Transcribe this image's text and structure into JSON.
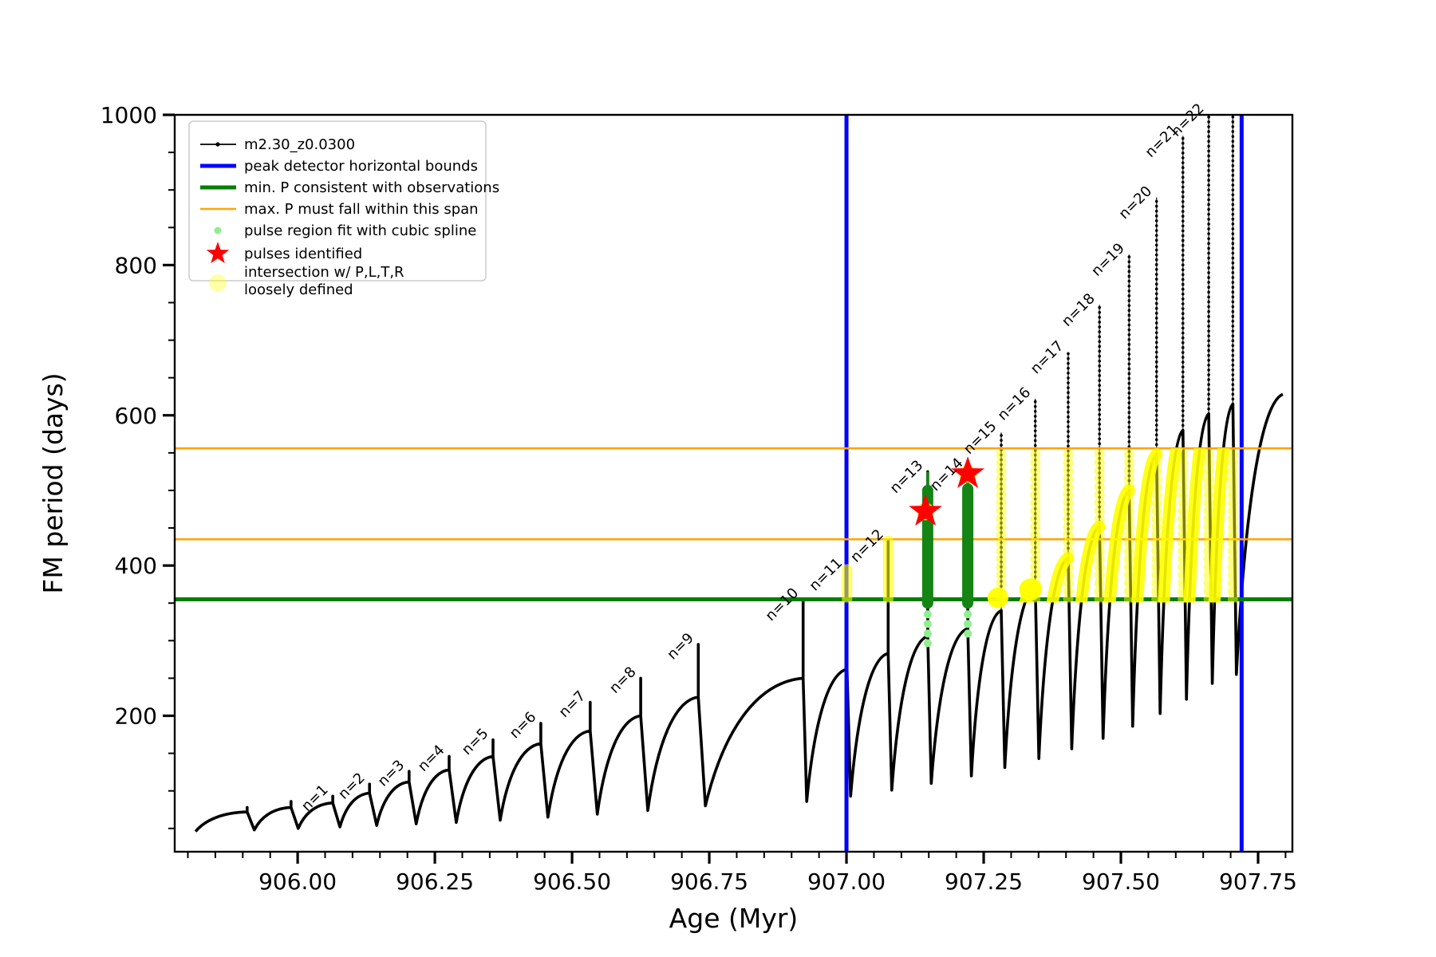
{
  "figure": {
    "kind": "matplotlib-style plot",
    "background": "#ffffff"
  },
  "legend": {
    "items": [
      {
        "type": "line-marker",
        "color": "#000000",
        "lw": 1.8,
        "label": "m2.30_z0.0300"
      },
      {
        "type": "line",
        "color": "#0000ff",
        "lw": 5,
        "label": "peak detector horizontal bounds"
      },
      {
        "type": "line",
        "color": "#007f00",
        "lw": 5,
        "label": "min. P consistent with observations"
      },
      {
        "type": "line",
        "color": "#ffa500",
        "lw": 2.5,
        "label": "max. P must fall within this span"
      },
      {
        "type": "dot",
        "color": "#90ee90",
        "r": 4.5,
        "opacity": 1,
        "label": "pulse region fit with cubic spline"
      },
      {
        "type": "star",
        "color": "#ff0000",
        "label": "pulses identified"
      },
      {
        "type": "dot",
        "color": "#ffff00",
        "r": 11,
        "opacity": 0.35,
        "label": [
          "intersection w/ P,L,T,R",
          "loosely defined"
        ]
      }
    ]
  },
  "chart_data": {
    "type": "line",
    "title": "",
    "xlabel": "Age (Myr)",
    "ylabel": "FM period (days)",
    "xlim": [
      905.776,
      907.8125
    ],
    "ylim": [
      19,
      1000
    ],
    "grid": false,
    "legend_position": "upper left",
    "x_major_ticks": [
      906.0,
      906.25,
      906.5,
      906.75,
      907.0,
      907.25,
      907.5,
      907.75
    ],
    "x_major_tick_labels": [
      "906.00",
      "906.25",
      "906.50",
      "906.75",
      "907.00",
      "907.25",
      "907.50",
      "907.75"
    ],
    "x_minor_step": 0.05,
    "y_major_ticks": [
      200,
      400,
      600,
      800,
      1000
    ],
    "y_major_tick_labels": [
      "200",
      "400",
      "600",
      "800",
      "1000"
    ],
    "y_minor_step": 50,
    "series_label": "m2.30_z0.0300",
    "colors": {
      "curve": "#000000",
      "peak_bounds": "#0000ff",
      "min_P": "#007f00",
      "max_P_span": "#ffa500",
      "spline_region": "#148414",
      "spline_dots": "#90ee90",
      "pulse_star": "#ff0000",
      "intersection": "#ffff00"
    },
    "peak_detector_bounds_x": [
      907.0,
      907.72
    ],
    "min_P_line_y": 355,
    "max_P_span_y": [
      435,
      556
    ],
    "pulses_identified": [
      {
        "age": 907.144,
        "period": 472
      },
      {
        "age": 907.221,
        "period": 522
      }
    ],
    "intersection_blobs": [
      {
        "age": 907.276,
        "period": 357,
        "r": 13
      },
      {
        "age": 907.335,
        "period": 368,
        "r": 14
      }
    ],
    "data_start": {
      "age": 905.814,
      "value": 46
    },
    "data_end": {
      "age": 907.795,
      "value": 628
    },
    "cycles": [
      {
        "label": null,
        "spike_age": 905.908,
        "base": 46,
        "shoulder": 72,
        "tip": 78,
        "yellow": false,
        "green": false
      },
      {
        "label": null,
        "spike_age": 905.988,
        "base": 48,
        "shoulder": 78,
        "tip": 86,
        "yellow": false,
        "green": false
      },
      {
        "label": "n=1",
        "spike_age": 906.064,
        "base": 50,
        "shoulder": 84,
        "tip": 93,
        "yellow": false,
        "green": false
      },
      {
        "label": "n=2",
        "spike_age": 906.131,
        "base": 52,
        "shoulder": 97,
        "tip": 109,
        "yellow": false,
        "green": false
      },
      {
        "label": "n=3",
        "spike_age": 906.203,
        "base": 54,
        "shoulder": 112,
        "tip": 126,
        "yellow": false,
        "green": false
      },
      {
        "label": "n=4",
        "spike_age": 906.276,
        "base": 56,
        "shoulder": 128,
        "tip": 146,
        "yellow": false,
        "green": false
      },
      {
        "label": "n=5",
        "spike_age": 906.356,
        "base": 58,
        "shoulder": 146,
        "tip": 168,
        "yellow": false,
        "green": false
      },
      {
        "label": "n=6",
        "spike_age": 906.443,
        "base": 61,
        "shoulder": 163,
        "tip": 190,
        "yellow": false,
        "green": false
      },
      {
        "label": "n=7",
        "spike_age": 906.533,
        "base": 65,
        "shoulder": 180,
        "tip": 218,
        "yellow": false,
        "green": false
      },
      {
        "label": "n=8",
        "spike_age": 906.625,
        "base": 69,
        "shoulder": 200,
        "tip": 250,
        "yellow": false,
        "green": false
      },
      {
        "label": "n=9",
        "spike_age": 906.73,
        "base": 74,
        "shoulder": 225,
        "tip": 295,
        "yellow": false,
        "green": false
      },
      {
        "label": "n=10",
        "spike_age": 906.921,
        "base": 80,
        "shoulder": 250,
        "tip": 355,
        "yellow": false,
        "green": false
      },
      {
        "label": "n=11",
        "spike_age": 907.001,
        "base": 86,
        "shoulder": 262,
        "tip": 395,
        "yellow": true,
        "green": false
      },
      {
        "label": "n=12",
        "spike_age": 907.076,
        "base": 93,
        "shoulder": 283,
        "tip": 433,
        "yellow": true,
        "green": false
      },
      {
        "label": "n=13",
        "spike_age": 907.148,
        "base": 101,
        "shoulder": 306,
        "tip": 525,
        "yellow": false,
        "green": true
      },
      {
        "label": "n=14",
        "spike_age": 907.221,
        "base": 110,
        "shoulder": 316,
        "tip": 528,
        "yellow": false,
        "green": true
      },
      {
        "label": "n=15",
        "spike_age": 907.282,
        "base": 120,
        "shoulder": 340,
        "tip": 577,
        "yellow": true,
        "green": false
      },
      {
        "label": "n=16",
        "spike_age": 907.344,
        "base": 131,
        "shoulder": 372,
        "tip": 622,
        "yellow": true,
        "green": false
      },
      {
        "label": "n=17",
        "spike_age": 907.404,
        "base": 143,
        "shoulder": 410,
        "tip": 684,
        "yellow": true,
        "green": false
      },
      {
        "label": "n=18",
        "spike_age": 907.461,
        "base": 156,
        "shoulder": 452,
        "tip": 747,
        "yellow": true,
        "green": false
      },
      {
        "label": "n=19",
        "spike_age": 907.515,
        "base": 170,
        "shoulder": 500,
        "tip": 814,
        "yellow": true,
        "green": false
      },
      {
        "label": "n=20",
        "spike_age": 907.565,
        "base": 186,
        "shoulder": 548,
        "tip": 890,
        "yellow": true,
        "green": false
      },
      {
        "label": "n=21",
        "spike_age": 907.613,
        "base": 203,
        "shoulder": 580,
        "tip": 972,
        "yellow": true,
        "green": false
      },
      {
        "label": "n=22",
        "spike_age": 907.66,
        "base": 222,
        "shoulder": 602,
        "tip": 1020,
        "yellow": true,
        "green": false
      },
      {
        "label": null,
        "spike_age": 907.704,
        "base": 243,
        "shoulder": 615,
        "tip": 1045,
        "yellow": true,
        "green": false
      },
      {
        "label": null,
        "spike_age": 907.795,
        "base": 255,
        "shoulder": 628,
        "tip": 628,
        "yellow": false,
        "green": false
      }
    ],
    "spline_fit_regions": [
      {
        "cycle": "n=13",
        "green_span": [
          350,
          500
        ],
        "thin_tip": 525,
        "lightgreen_dots_span": [
          285,
          348
        ]
      },
      {
        "cycle": "n=14",
        "green_span": [
          350,
          502
        ],
        "thin_tip": 528,
        "lightgreen_dots_span": [
          302,
          348
        ]
      }
    ]
  }
}
